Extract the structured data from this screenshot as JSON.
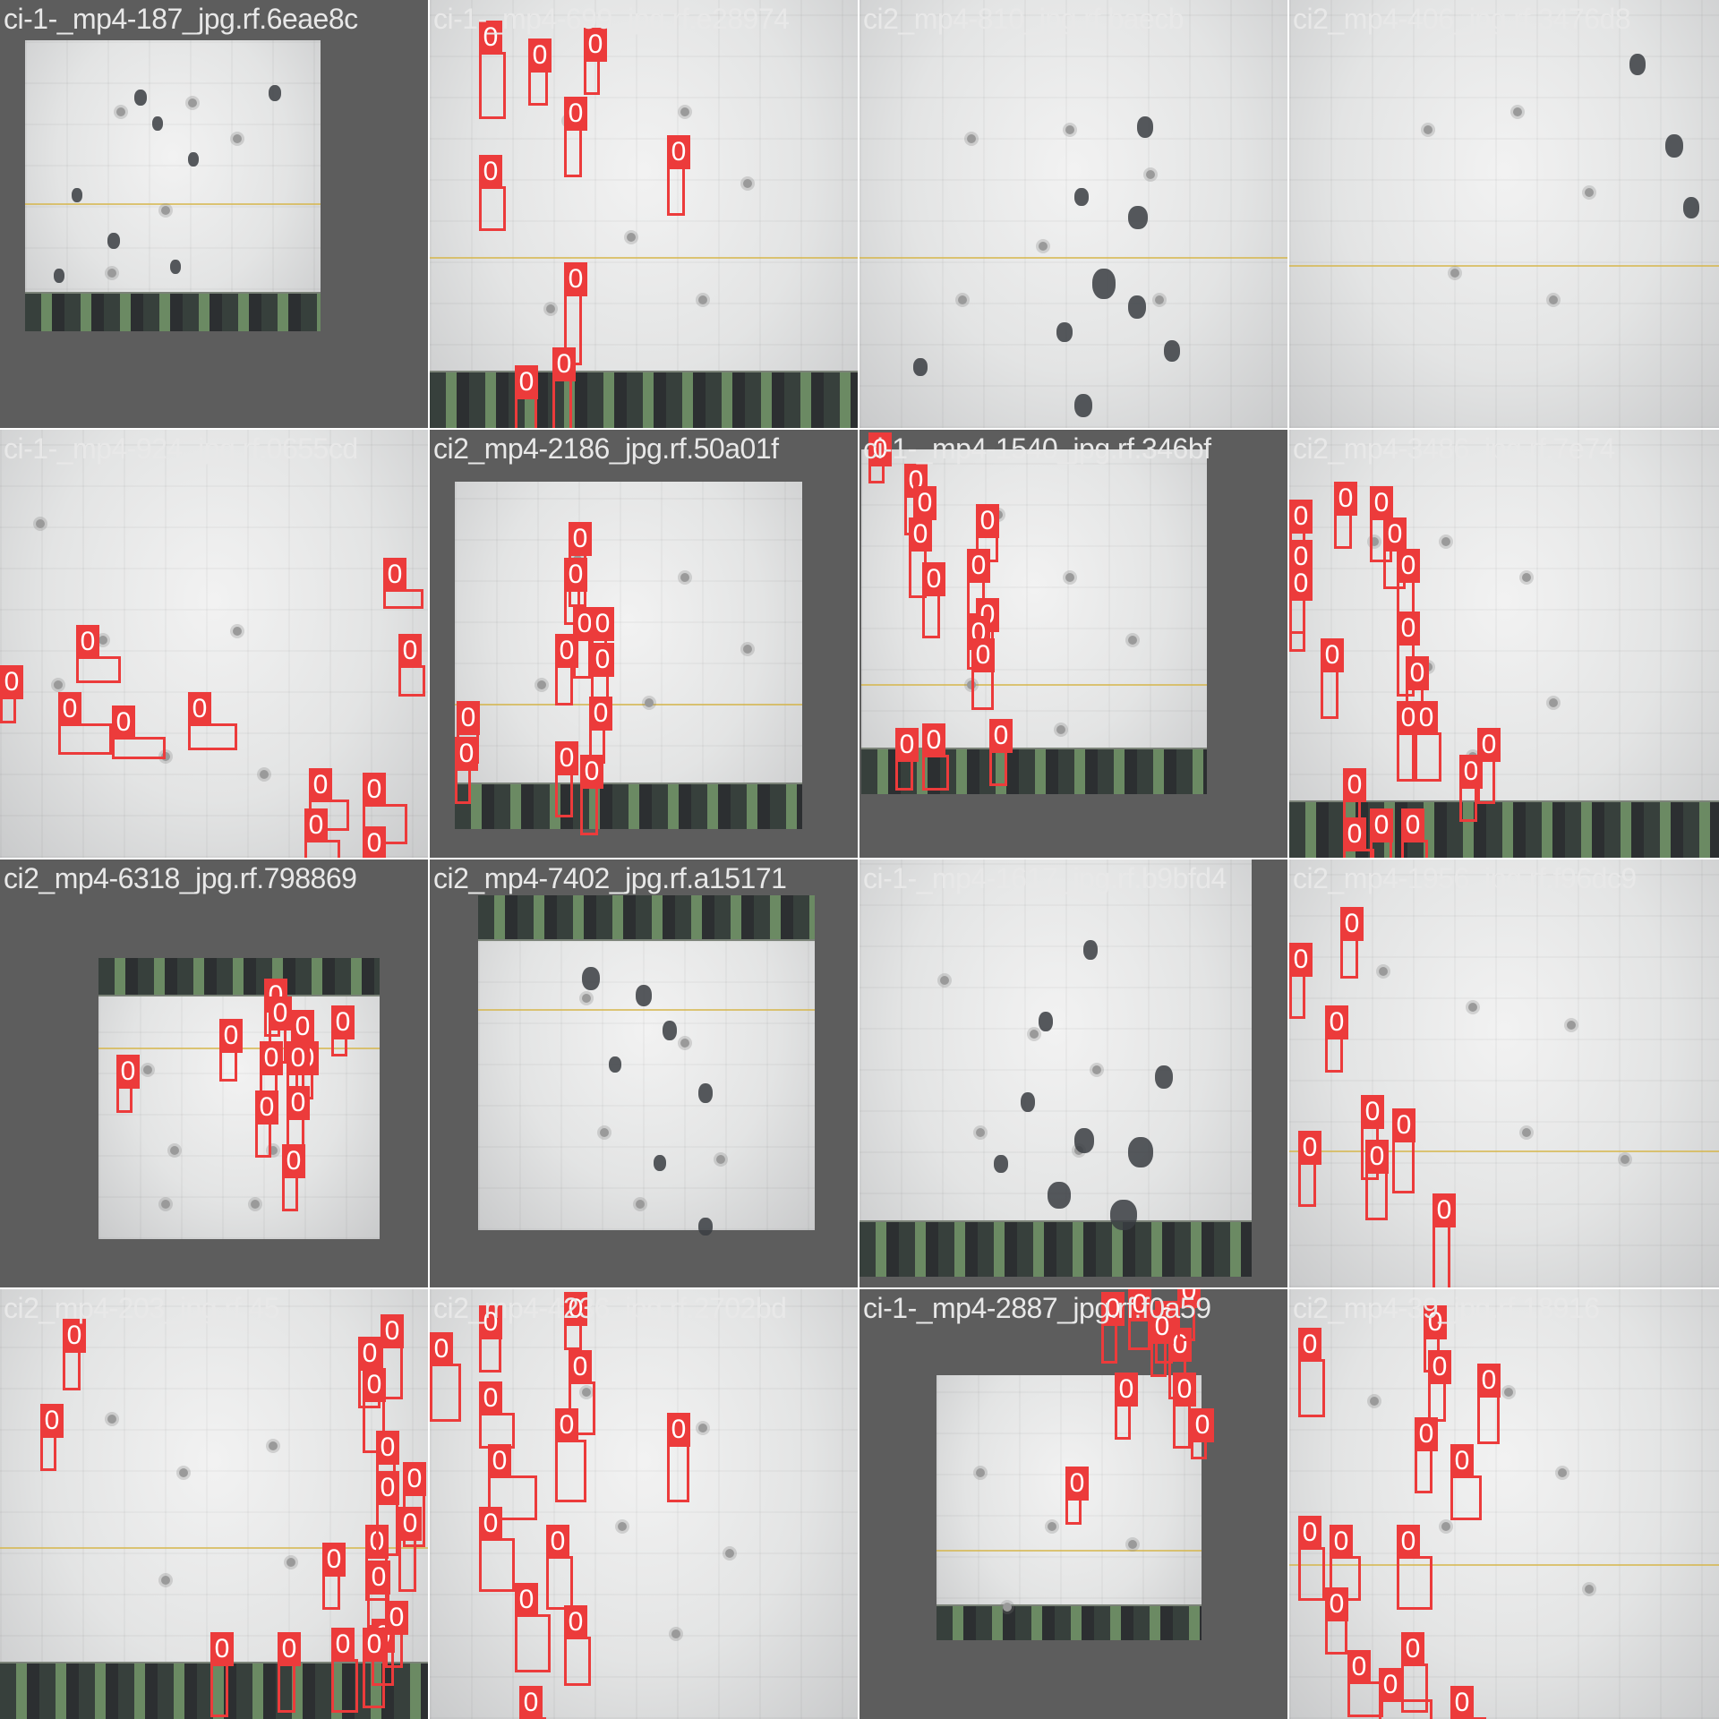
{
  "tiles": [
    {
      "name": "ci-1-_mp4-187_jpg.rf.6eae8c",
      "class_ids": []
    },
    {
      "name": "ci-1-_mp4-699_jpg.rf.e28974",
      "class_ids": [
        "0",
        "0",
        "0",
        "0",
        "0",
        "0",
        "0",
        "0",
        "0",
        "0"
      ]
    },
    {
      "name": "ci2_mp4-810_jpg.rf.baecb",
      "class_ids": []
    },
    {
      "name": "ci2_mp4-406_jpg.rf.3476d8",
      "class_ids": []
    },
    {
      "name": "ci-1-_mp4-924_jpg.rf.0655cd",
      "class_ids": [
        "0",
        "0",
        "0",
        "0",
        "0",
        "0",
        "0",
        "0",
        "0",
        "0",
        "0",
        "0"
      ]
    },
    {
      "name": "ci2_mp4-2186_jpg.rf.50a01f",
      "class_ids": [
        "0",
        "0",
        "0",
        "0",
        "0",
        "0",
        "0",
        "0",
        "0",
        "0",
        "0",
        "0",
        "0"
      ]
    },
    {
      "name": "ci-1-_mp4-1540_jpg.rf.346bf",
      "class_ids": [
        "0",
        "0",
        "0",
        "0",
        "0",
        "0",
        "0",
        "0",
        "0",
        "0",
        "0",
        "0",
        "0",
        "0",
        "0"
      ]
    },
    {
      "name": "ci2_mp4-3486_jpg.rf.7e74",
      "class_ids": [
        "0",
        "0",
        "0",
        "0",
        "0",
        "0",
        "0",
        "0",
        "0",
        "0",
        "0",
        "0",
        "0",
        "0",
        "0",
        "0",
        "0",
        "0"
      ]
    },
    {
      "name": "ci2_mp4-6318_jpg.rf.798869",
      "class_ids": [
        "0",
        "0",
        "0",
        "0",
        "0",
        "0",
        "0",
        "0",
        "0",
        "0",
        "0",
        "0",
        "0"
      ]
    },
    {
      "name": "ci2_mp4-7402_jpg.rf.a15171",
      "class_ids": []
    },
    {
      "name": "ci-1-_mp4-1617_jpg.rf.b9bfd4",
      "class_ids": []
    },
    {
      "name": "ci2_mp4-1956_jpg.rf.f96dc9",
      "class_ids": [
        "0",
        "0",
        "0",
        "0",
        "0",
        "0",
        "0",
        "0"
      ]
    },
    {
      "name": "ci2_mp4-203_jpg.rf.45",
      "class_ids": [
        "0",
        "0",
        "0",
        "0",
        "0",
        "0",
        "0",
        "0",
        "0",
        "0",
        "0",
        "0",
        "0",
        "0",
        "0",
        "0",
        "0",
        "0",
        "0"
      ]
    },
    {
      "name": "ci2_mp4-4236_jpg.rf.2702bd",
      "class_ids": [
        "0",
        "0",
        "0",
        "0",
        "0",
        "0",
        "0",
        "0",
        "0",
        "0",
        "0",
        "0",
        "0"
      ]
    },
    {
      "name": "ci-1-_mp4-2887_jpg.rf.f0a59",
      "class_ids": [
        "0",
        "0",
        "0",
        "0",
        "0",
        "0",
        "0",
        "0",
        "0",
        "0",
        "0",
        "0",
        "0"
      ]
    },
    {
      "name": "ci2_mp4-39_jpg.rf.18916",
      "class_ids": [
        "0",
        "0",
        "0",
        "0",
        "0",
        "0",
        "0",
        "0",
        "0",
        "0",
        "0",
        "0",
        "0",
        "0"
      ]
    }
  ]
}
